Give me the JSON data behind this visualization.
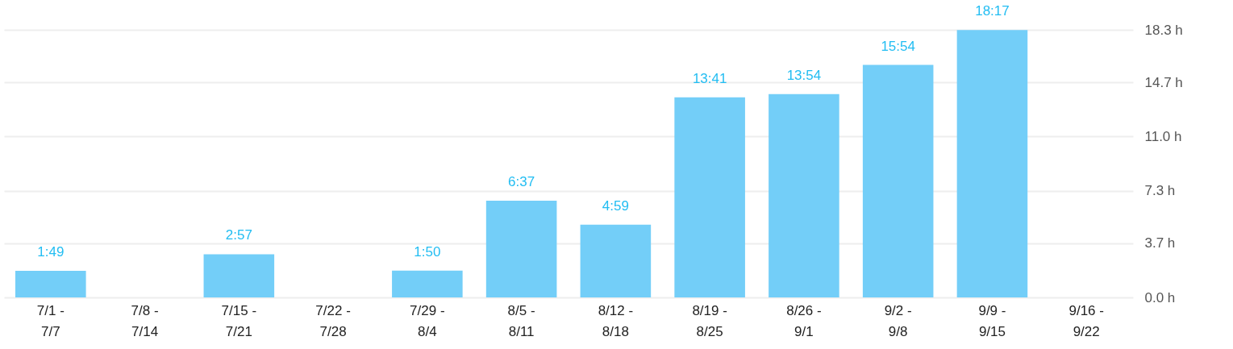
{
  "chart_data": {
    "type": "bar",
    "categories": [
      "7/1 -\n7/7",
      "7/8 -\n7/14",
      "7/15 -\n7/21",
      "7/22 -\n7/28",
      "7/29 -\n8/4",
      "8/5 -\n8/11",
      "8/12 -\n8/18",
      "8/19 -\n8/25",
      "8/26 -\n9/1",
      "9/2 -\n9/8",
      "9/9 -\n9/15",
      "9/16 -\n9/22"
    ],
    "values": [
      1.82,
      null,
      2.95,
      null,
      1.83,
      6.62,
      4.98,
      13.68,
      13.9,
      15.9,
      18.28,
      null
    ],
    "value_labels": [
      "1:49",
      null,
      "2:57",
      null,
      "1:50",
      "6:37",
      "4:59",
      "13:41",
      "13:54",
      "15:54",
      "18:17",
      null
    ],
    "color": "#73cef8",
    "ylim": [
      0,
      18.3
    ],
    "yticks": [
      {
        "value": 0,
        "label": "0.0 h"
      },
      {
        "value": 3.7,
        "label": "3.7 h"
      },
      {
        "value": 7.3,
        "label": "7.3 h"
      },
      {
        "value": 11.0,
        "label": "11.0 h"
      },
      {
        "value": 14.7,
        "label": "14.7 h"
      },
      {
        "value": 18.3,
        "label": "18.3 h"
      }
    ],
    "grid": "y"
  }
}
